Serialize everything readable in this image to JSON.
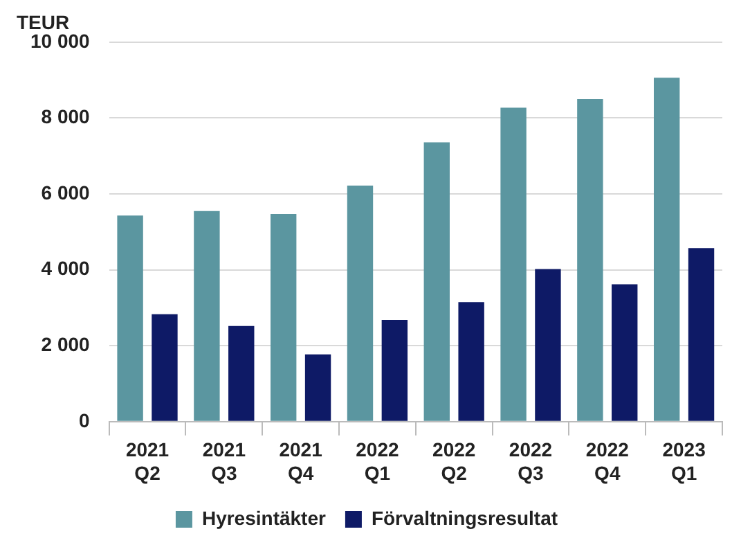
{
  "chart_data": {
    "type": "bar",
    "ylabel": "TEUR",
    "categories": [
      "2021\nQ2",
      "2021\nQ3",
      "2021\nQ4",
      "2022\nQ1",
      "2022\nQ2",
      "2022\nQ3",
      "2022\nQ4",
      "2023\nQ1"
    ],
    "series": [
      {
        "name": "Hyresintäkter",
        "color": "#5b96a0",
        "values": [
          5430,
          5550,
          5470,
          6220,
          7360,
          8270,
          8500,
          9060
        ]
      },
      {
        "name": "Förvaltningsresultat",
        "color": "#0e1a66",
        "values": [
          2830,
          2520,
          1770,
          2680,
          3150,
          4020,
          3620,
          4570
        ]
      }
    ],
    "ylim": [
      0,
      10000
    ],
    "yticks": [
      0,
      {
        "value": 2000,
        "label": "2 000"
      },
      {
        "value": 4000,
        "label": "4 000"
      },
      {
        "value": 6000,
        "label": "6 000"
      },
      {
        "value": 8000,
        "label": "8 000"
      },
      {
        "value": 10000,
        "label": "10 000"
      }
    ],
    "grid": "y",
    "legend": "bottom"
  }
}
